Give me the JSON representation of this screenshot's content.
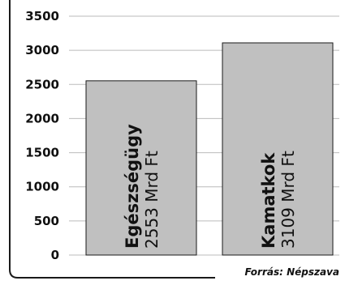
{
  "chart_data": {
    "type": "bar",
    "categories": [
      "Egészségügy",
      "Kamatkok"
    ],
    "values": [
      2553,
      3109
    ],
    "value_labels": [
      "2553 Mrd Ft",
      "3109 Mrd Ft"
    ],
    "title": "",
    "xlabel": "",
    "ylabel": "",
    "ylim": [
      0,
      3500
    ],
    "yticks": [
      "0",
      "500",
      "1000",
      "1500",
      "2000",
      "2500",
      "3000",
      "3500"
    ],
    "grid": true,
    "legend": "none",
    "bar_color": "#c0c0c0",
    "bar_border_color": "#1a1a1a",
    "grid_color": "#bbbbbb",
    "frame_color": "#1a1a1a"
  },
  "source": "Forrás: Népszava"
}
